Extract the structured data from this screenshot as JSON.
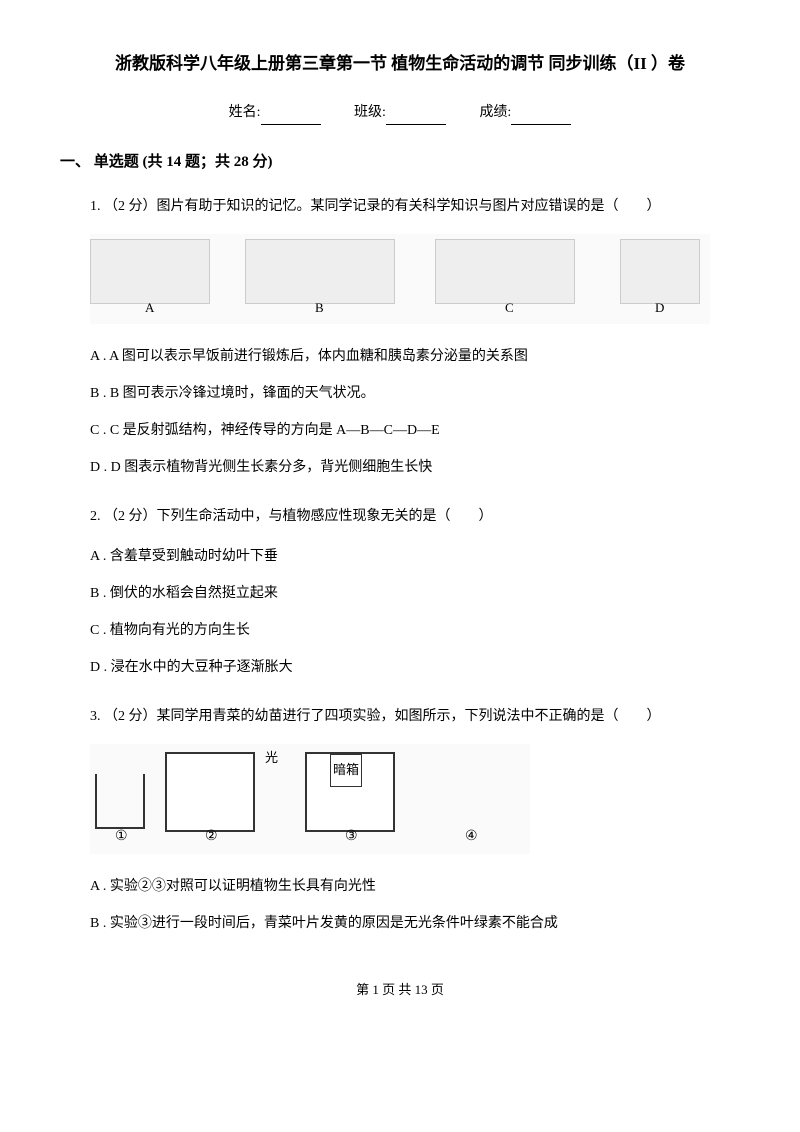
{
  "title": "浙教版科学八年级上册第三章第一节 植物生命活动的调节 同步训练（II ）卷",
  "info": {
    "name_label": "姓名:",
    "class_label": "班级:",
    "score_label": "成绩:"
  },
  "section": {
    "header": "一、 单选题 (共 14 题；共 28 分)"
  },
  "q1": {
    "text": "1. （2 分）图片有助于知识的记忆。某同学记录的有关科学知识与图片对应错误的是（　　）",
    "labels": {
      "a": "A",
      "b": "B",
      "c": "C",
      "d": "D"
    },
    "opt_a": "A . A 图可以表示早饭前进行锻炼后，体内血糖和胰岛素分泌量的关系图",
    "opt_b": "B . B 图可表示冷锋过境时，锋面的天气状况。",
    "opt_c": "C . C 是反射弧结构，神经传导的方向是 A—B—C—D—E",
    "opt_d": "D . D 图表示植物背光侧生长素分多，背光侧细胞生长快"
  },
  "q2": {
    "text": "2. （2 分）下列生命活动中，与植物感应性现象无关的是（　　）",
    "opt_a": "A . 含羞草受到触动时幼叶下垂",
    "opt_b": "B . 倒伏的水稻会自然挺立起来",
    "opt_c": "C . 植物向有光的方向生长",
    "opt_d": "D . 浸在水中的大豆种子逐渐胀大"
  },
  "q3": {
    "text": "3. （2 分）某同学用青菜的幼苗进行了四项实验，如图所示，下列说法中不正确的是（　　）",
    "light_label": "光",
    "dark_label": "暗箱",
    "nums": {
      "n1": "①",
      "n2": "②",
      "n3": "③",
      "n4": "④"
    },
    "opt_a": "A . 实验②③对照可以证明植物生长具有向光性",
    "opt_b": "B . 实验③进行一段时间后，青菜叶片发黄的原因是无光条件叶绿素不能合成"
  },
  "footer": {
    "text": "第 1 页 共 13 页"
  }
}
